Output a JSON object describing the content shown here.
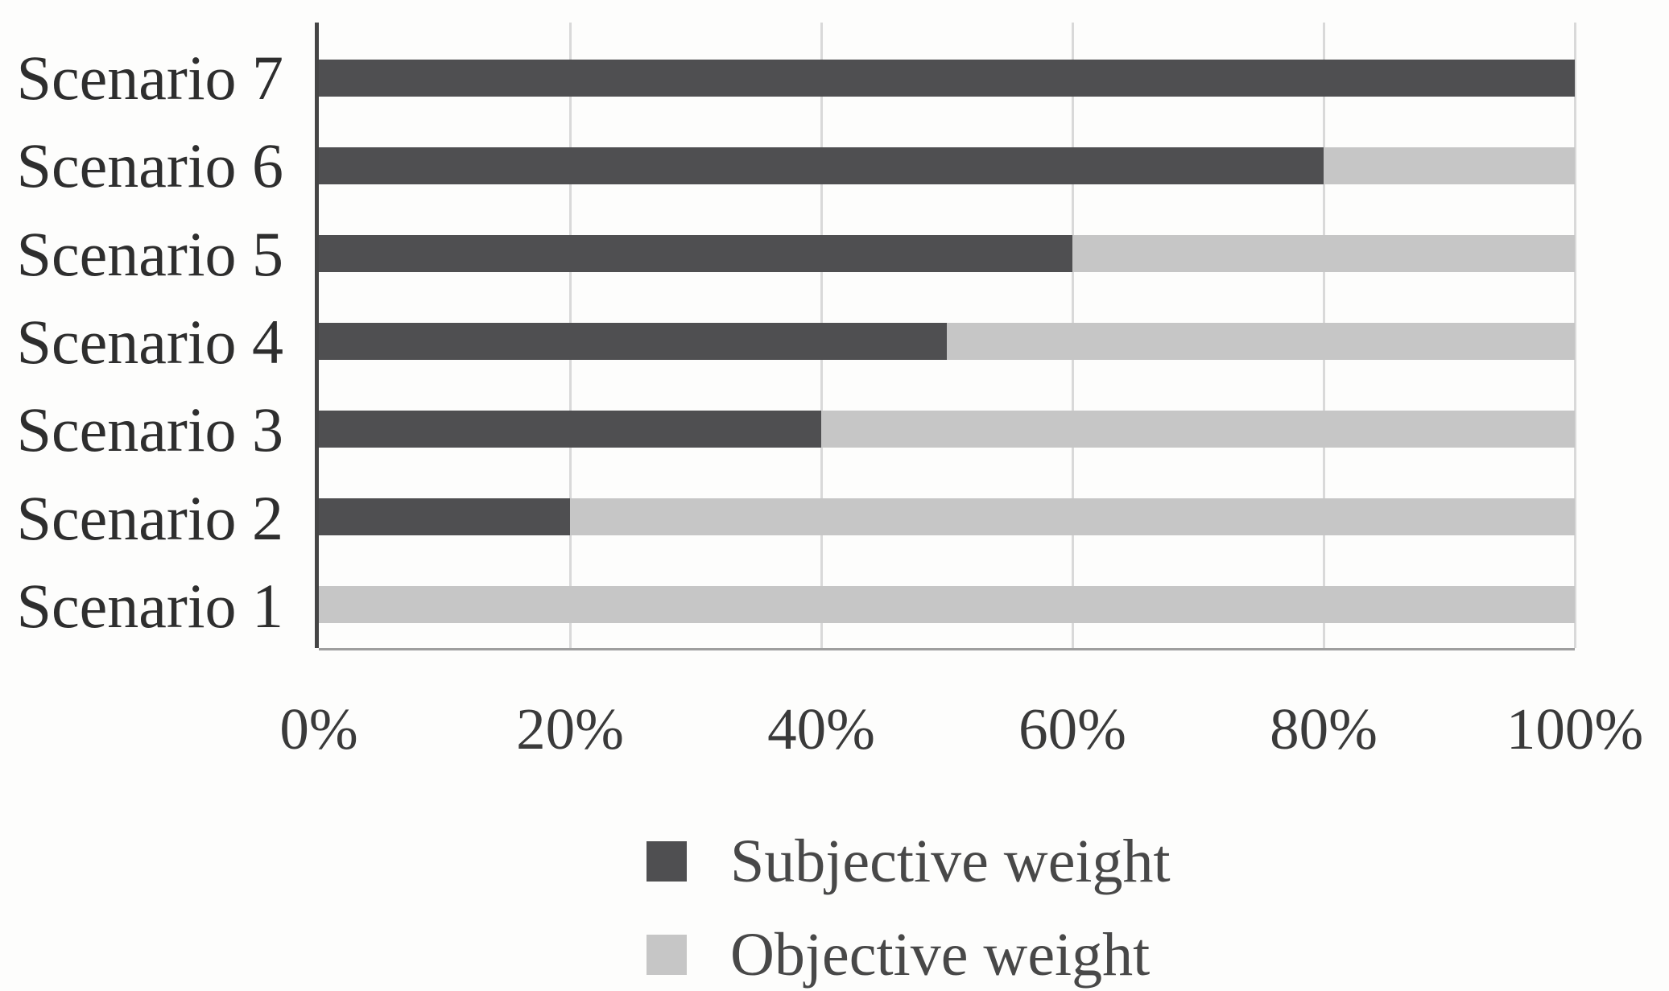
{
  "chart_data": {
    "type": "bar",
    "orientation": "horizontal",
    "stacked": true,
    "title": "",
    "xlabel": "",
    "ylabel": "",
    "categories": [
      "Scenario 7",
      "Scenario 6",
      "Scenario 5",
      "Scenario 4",
      "Scenario 3",
      "Scenario 2",
      "Scenario 1"
    ],
    "series": [
      {
        "name": "Subjective weight",
        "color": "#4f4f51",
        "values": [
          100,
          80,
          60,
          50,
          40,
          20,
          0
        ]
      },
      {
        "name": "Objective weight",
        "color": "#c6c6c6",
        "values": [
          0,
          20,
          40,
          50,
          60,
          80,
          100
        ]
      }
    ],
    "x_ticks": [
      "0%",
      "20%",
      "40%",
      "60%",
      "80%",
      "100%"
    ],
    "x_tick_values": [
      0,
      20,
      40,
      60,
      80,
      100
    ],
    "xlim": [
      0,
      100
    ],
    "grid": "vertical gridlines every 20%",
    "legend_position": "below chart, left-aligned column"
  },
  "style_colors": {
    "gridline": "#d9d9d9",
    "y_axis_line": "#454545",
    "x_axis_line": "#9e9e9e",
    "category_text": "#2e2e2e",
    "tick_text": "#3a3a3a",
    "legend_text": "#484848",
    "background": "#fdfdfc"
  }
}
